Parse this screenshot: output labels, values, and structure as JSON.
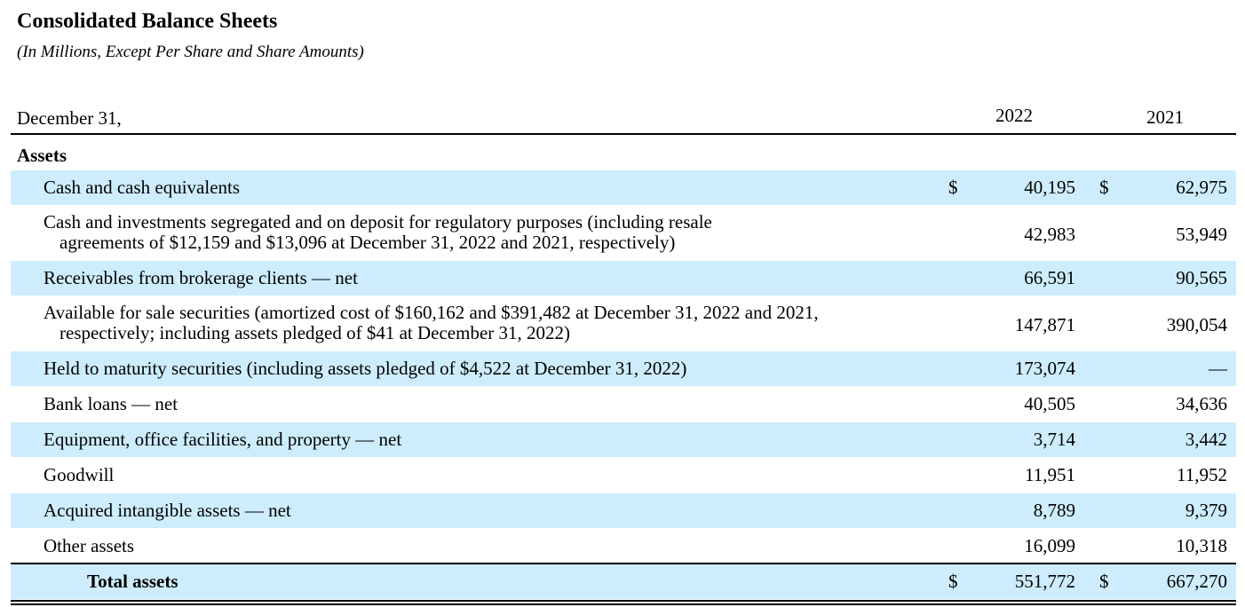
{
  "header": {
    "title": "Consolidated Balance Sheets",
    "subtitle": "(In Millions, Except Per Share and Share Amounts)"
  },
  "table": {
    "columns": [
      "December 31,",
      "2022",
      "2021"
    ],
    "section": "Assets",
    "rows": [
      {
        "label": [
          "Cash and cash equivalents"
        ],
        "markers": [
          "$",
          "$"
        ],
        "values": [
          "40,195",
          "62,975"
        ]
      },
      {
        "label": [
          "Cash and investments segregated and on deposit for regulatory purposes (including resale",
          "agreements of $12,159 and $13,096 at December 31, 2022 and 2021, respectively)"
        ],
        "values": [
          "42,983",
          "53,949"
        ]
      },
      {
        "label": [
          "Receivables from brokerage clients — net"
        ],
        "values": [
          "66,591",
          "90,565"
        ]
      },
      {
        "label": [
          "Available for sale securities (amortized cost of $160,162 and $391,482 at December 31, 2022 and 2021,",
          "respectively; including assets pledged of $41 at December 31, 2022)"
        ],
        "values": [
          "147,871",
          "390,054"
        ]
      },
      {
        "label": [
          "Held to maturity securities (including assets pledged of $4,522 at December 31, 2022)"
        ],
        "values": [
          "173,074",
          "—"
        ]
      },
      {
        "label": [
          "Bank loans — net"
        ],
        "values": [
          "40,505",
          "34,636"
        ]
      },
      {
        "label": [
          "Equipment, office facilities, and property — net"
        ],
        "values": [
          "3,714",
          "3,442"
        ]
      },
      {
        "label": [
          "Goodwill"
        ],
        "values": [
          "11,951",
          "11,952"
        ]
      },
      {
        "label": [
          "Acquired intangible assets — net"
        ],
        "values": [
          "8,789",
          "9,379"
        ]
      },
      {
        "label": [
          "Other assets"
        ],
        "values": [
          "16,099",
          "10,318"
        ]
      }
    ],
    "total": {
      "label": [
        "Total assets"
      ],
      "markers": [
        "$",
        "$"
      ],
      "values": [
        "551,772",
        "667,270"
      ]
    }
  }
}
